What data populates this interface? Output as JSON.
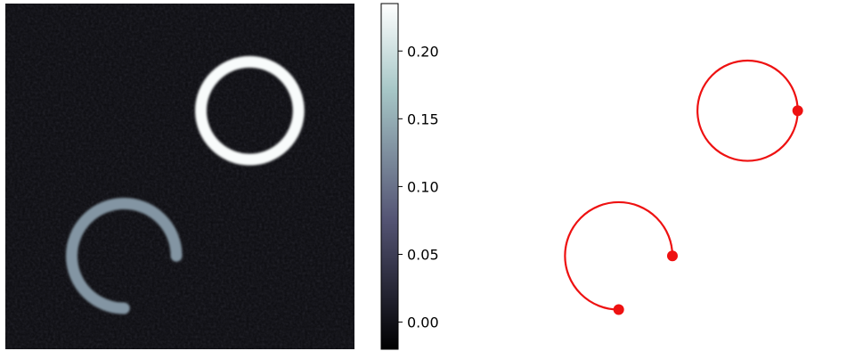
{
  "chart_data": [
    {
      "type": "heatmap",
      "title": "",
      "xlabel": "",
      "ylabel": "",
      "axes_visible": false,
      "background_color": "#0c0c10",
      "colormap": "bone",
      "shapes": [
        {
          "kind": "ring",
          "center": [
            0.7,
            0.31
          ],
          "radius": 0.14,
          "arc_degrees": [
            0,
            360
          ],
          "intensity": 0.23
        },
        {
          "kind": "arc",
          "center": [
            0.34,
            0.73
          ],
          "radius": 0.15,
          "arc_degrees": [
            0,
            270
          ],
          "intensity": 0.13
        }
      ],
      "colorbar": {
        "vmin": -0.02,
        "vmax": 0.235,
        "ticks": [
          0.0,
          0.05,
          0.1,
          0.15,
          0.2
        ],
        "tick_labels": [
          "0.00",
          "0.05",
          "0.10",
          "0.15",
          "0.20"
        ]
      }
    },
    {
      "type": "line",
      "title": "",
      "xlabel": "",
      "ylabel": "",
      "axes_visible": false,
      "line_color": "#ee1111",
      "series": [
        {
          "kind": "circle",
          "center": [
            0.7,
            0.31
          ],
          "radius": 0.14,
          "arc_degrees": [
            0,
            360
          ],
          "marker_at_degrees": [
            0
          ]
        },
        {
          "kind": "arc",
          "center": [
            0.34,
            0.73
          ],
          "radius": 0.15,
          "arc_degrees": [
            0,
            270
          ],
          "marker_at_degrees": [
            0,
            270
          ]
        }
      ]
    }
  ]
}
